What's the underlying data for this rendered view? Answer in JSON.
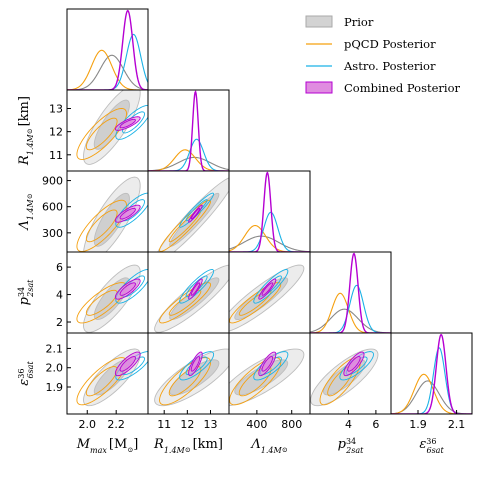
{
  "chart_data": {
    "type": "corner",
    "parameters": [
      {
        "key": "mmax",
        "label": "M",
        "sub": "max",
        "suffix": "[M",
        "suffix_sub": "⊙",
        "suffix_end": "]",
        "range": [
          1.86,
          2.42
        ],
        "ticks": [
          2.0,
          2.2
        ],
        "tick_labels": [
          "2.0",
          "2.2"
        ]
      },
      {
        "key": "r14",
        "label": "R",
        "sub": "1.4M",
        "sub2": "⊙",
        "suffix": "[km]",
        "range": [
          10.3,
          13.8
        ],
        "ticks": [
          11,
          12,
          13
        ],
        "tick_labels": [
          "11",
          "12",
          "13"
        ]
      },
      {
        "key": "lam14",
        "label": "Λ",
        "sub": "1.4M",
        "sub2": "⊙",
        "range": [
          80,
          1010
        ],
        "ticks": [
          300,
          600,
          900
        ],
        "tick_labels": [
          "300",
          "600",
          "900"
        ],
        "x_ticks": [
          400,
          800
        ],
        "x_tick_labels": [
          "400",
          "800"
        ]
      },
      {
        "key": "p34",
        "label": "p",
        "sup": "34",
        "sub": "2sat",
        "range": [
          1.2,
          7.1
        ],
        "ticks": [
          2,
          4,
          6
        ],
        "tick_labels": [
          "2",
          "4",
          "6"
        ],
        "x_ticks": [
          4,
          6
        ],
        "x_tick_labels": [
          "4",
          "6"
        ]
      },
      {
        "key": "eps36",
        "label": "ε",
        "sup": "36",
        "sub": "6sat",
        "range": [
          1.76,
          2.18
        ],
        "ticks": [
          1.9,
          2.0,
          2.1
        ],
        "tick_labels": [
          "1.9",
          "2.0",
          "2.1"
        ],
        "x_ticks": [
          1.9,
          2.1
        ],
        "x_tick_labels": [
          "1.9",
          "2.1"
        ]
      }
    ],
    "series": [
      {
        "key": "prior",
        "name": "Prior",
        "color": "#c8c8c8",
        "style": "filled-gray",
        "mean": [
          2.17,
          12.3,
          450,
          3.7,
          1.95
        ],
        "sd": [
          0.08,
          0.7,
          200,
          1.0,
          0.06
        ]
      },
      {
        "key": "pqcd",
        "name": "pQCD Posterior",
        "color": "#f5a00f",
        "style": "line",
        "mean": [
          2.1,
          11.9,
          380,
          3.4,
          1.93
        ],
        "sd": [
          0.07,
          0.45,
          120,
          0.6,
          0.05
        ]
      },
      {
        "key": "astro",
        "name": "Astro. Posterior",
        "color": "#1ab2e6",
        "style": "line",
        "mean": [
          2.32,
          12.4,
          560,
          4.6,
          2.01
        ],
        "sd": [
          0.05,
          0.3,
          80,
          0.5,
          0.03
        ]
      },
      {
        "key": "combined",
        "name": "Combined Posterior",
        "color": "#b500d2",
        "fill": "#e08ce0",
        "style": "filled",
        "mean": [
          2.28,
          12.35,
          520,
          4.4,
          2.02
        ],
        "sd": [
          0.035,
          0.12,
          40,
          0.3,
          0.025
        ]
      }
    ],
    "legend_position": "top-right",
    "grid": false
  }
}
